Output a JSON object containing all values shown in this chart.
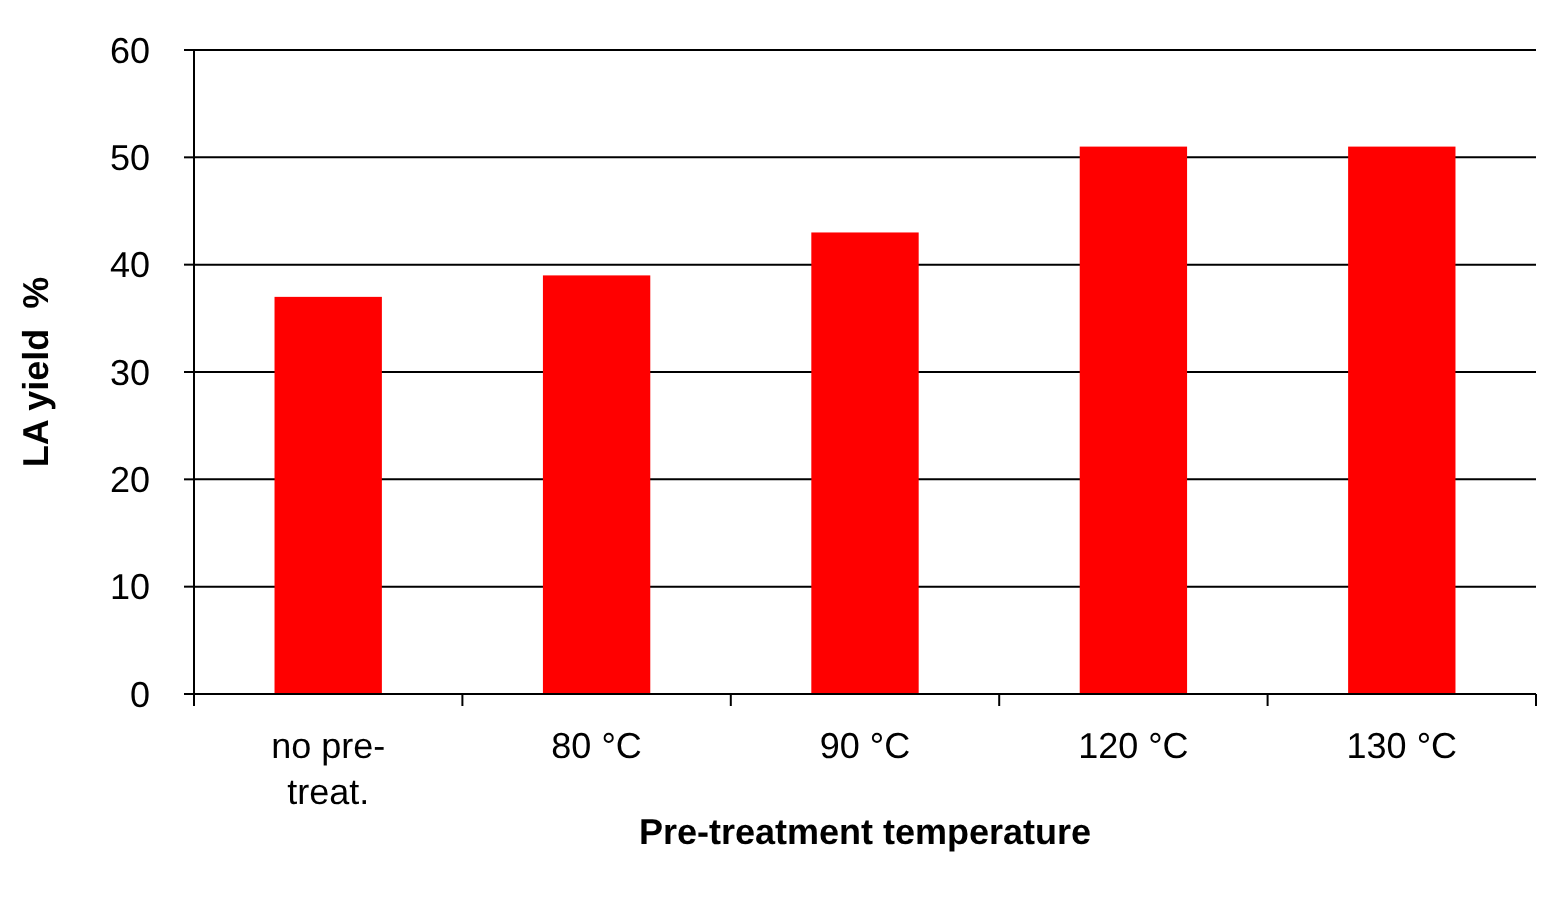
{
  "chart_data": {
    "type": "bar",
    "xlabel": "Pre-treatment temperature",
    "ylabel": "LA yield  %",
    "categories": [
      "no pre-treat.",
      "80 °C",
      "90 °C",
      "120 °C",
      "130 °C"
    ],
    "values": [
      37,
      39,
      43,
      51,
      51
    ],
    "color": "#ff0000",
    "ylim": [
      0,
      60
    ],
    "yticks": [
      0,
      10,
      20,
      30,
      40,
      50,
      60
    ],
    "grid": "y"
  }
}
